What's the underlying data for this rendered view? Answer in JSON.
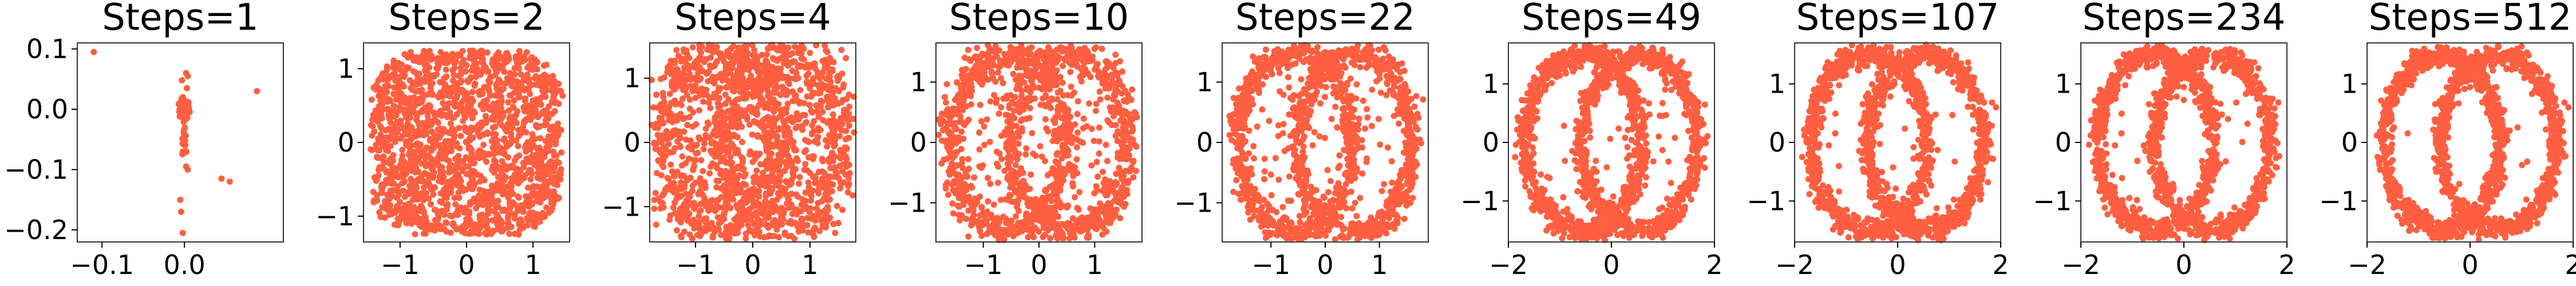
{
  "chart_data": [
    {
      "type": "scatter",
      "title": "Steps=1",
      "steps": 1,
      "color": "#ff5f40",
      "xlim": [
        -0.13,
        0.12
      ],
      "ylim": [
        -0.22,
        0.11
      ],
      "xticks": [
        {
          "v": -0.1,
          "label": "−0.1"
        },
        {
          "v": 0.0,
          "label": "0.0"
        }
      ],
      "yticks": [
        {
          "v": 0.1,
          "label": "0.1"
        },
        {
          "v": 0.0,
          "label": "0.0"
        },
        {
          "v": -0.1,
          "label": "−0.1"
        },
        {
          "v": -0.2,
          "label": "−0.2"
        }
      ]
    },
    {
      "type": "scatter",
      "title": "Steps=2",
      "steps": 2,
      "color": "#ff5f40",
      "xlim": [
        -1.55,
        1.55
      ],
      "ylim": [
        -1.35,
        1.35
      ],
      "xticks": [
        {
          "v": -1,
          "label": "−1"
        },
        {
          "v": 0,
          "label": "0"
        },
        {
          "v": 1,
          "label": "1"
        }
      ],
      "yticks": [
        {
          "v": 1,
          "label": "1"
        },
        {
          "v": 0,
          "label": "0"
        },
        {
          "v": -1,
          "label": "−1"
        }
      ]
    },
    {
      "type": "scatter",
      "title": "Steps=4",
      "steps": 4,
      "color": "#ff5f40",
      "xlim": [
        -1.8,
        1.8
      ],
      "ylim": [
        -1.55,
        1.55
      ],
      "xticks": [
        {
          "v": -1,
          "label": "−1"
        },
        {
          "v": 0,
          "label": "0"
        },
        {
          "v": 1,
          "label": "1"
        }
      ],
      "yticks": [
        {
          "v": 1,
          "label": "1"
        },
        {
          "v": 0,
          "label": "0"
        },
        {
          "v": -1,
          "label": "−1"
        }
      ]
    },
    {
      "type": "scatter",
      "title": "Steps=10",
      "steps": 10,
      "color": "#ff5f40",
      "xlim": [
        -1.85,
        1.85
      ],
      "ylim": [
        -1.65,
        1.65
      ],
      "xticks": [
        {
          "v": -1,
          "label": "−1"
        },
        {
          "v": 0,
          "label": "0"
        },
        {
          "v": 1,
          "label": "1"
        }
      ],
      "yticks": [
        {
          "v": 1,
          "label": "1"
        },
        {
          "v": 0,
          "label": "0"
        },
        {
          "v": -1,
          "label": "−1"
        }
      ]
    },
    {
      "type": "scatter",
      "title": "Steps=22",
      "steps": 22,
      "color": "#ff5f40",
      "xlim": [
        -1.9,
        1.9
      ],
      "ylim": [
        -1.65,
        1.65
      ],
      "xticks": [
        {
          "v": -1,
          "label": "−1"
        },
        {
          "v": 0,
          "label": "0"
        },
        {
          "v": 1,
          "label": "1"
        }
      ],
      "yticks": [
        {
          "v": 1,
          "label": "1"
        },
        {
          "v": 0,
          "label": "0"
        },
        {
          "v": -1,
          "label": "−1"
        }
      ]
    },
    {
      "type": "scatter",
      "title": "Steps=49",
      "steps": 49,
      "color": "#ff5f40",
      "xlim": [
        -2.0,
        2.0
      ],
      "ylim": [
        -1.7,
        1.7
      ],
      "xticks": [
        {
          "v": -2,
          "label": "−2"
        },
        {
          "v": 0,
          "label": "0"
        },
        {
          "v": 2,
          "label": "2"
        }
      ],
      "yticks": [
        {
          "v": 1,
          "label": "1"
        },
        {
          "v": 0,
          "label": "0"
        },
        {
          "v": -1,
          "label": "−1"
        }
      ]
    },
    {
      "type": "scatter",
      "title": "Steps=107",
      "steps": 107,
      "color": "#ff5f40",
      "xlim": [
        -2.0,
        2.0
      ],
      "ylim": [
        -1.7,
        1.7
      ],
      "xticks": [
        {
          "v": -2,
          "label": "−2"
        },
        {
          "v": 0,
          "label": "0"
        },
        {
          "v": 2,
          "label": "2"
        }
      ],
      "yticks": [
        {
          "v": 1,
          "label": "1"
        },
        {
          "v": 0,
          "label": "0"
        },
        {
          "v": -1,
          "label": "−1"
        }
      ]
    },
    {
      "type": "scatter",
      "title": "Steps=234",
      "steps": 234,
      "color": "#ff5f40",
      "xlim": [
        -2.0,
        2.0
      ],
      "ylim": [
        -1.7,
        1.7
      ],
      "xticks": [
        {
          "v": -2,
          "label": "−2"
        },
        {
          "v": 0,
          "label": "0"
        },
        {
          "v": 2,
          "label": "2"
        }
      ],
      "yticks": [
        {
          "v": 1,
          "label": "1"
        },
        {
          "v": 0,
          "label": "0"
        },
        {
          "v": -1,
          "label": "−1"
        }
      ]
    },
    {
      "type": "scatter",
      "title": "Steps=512",
      "steps": 512,
      "color": "#ff5f40",
      "xlim": [
        -2.0,
        2.0
      ],
      "ylim": [
        -1.7,
        1.7
      ],
      "xticks": [
        {
          "v": -2,
          "label": "−2"
        },
        {
          "v": 0,
          "label": "0"
        },
        {
          "v": 2,
          "label": "2"
        }
      ],
      "yticks": [
        {
          "v": 1,
          "label": "1"
        },
        {
          "v": 0,
          "label": "0"
        },
        {
          "v": -1,
          "label": "−1"
        }
      ]
    }
  ]
}
